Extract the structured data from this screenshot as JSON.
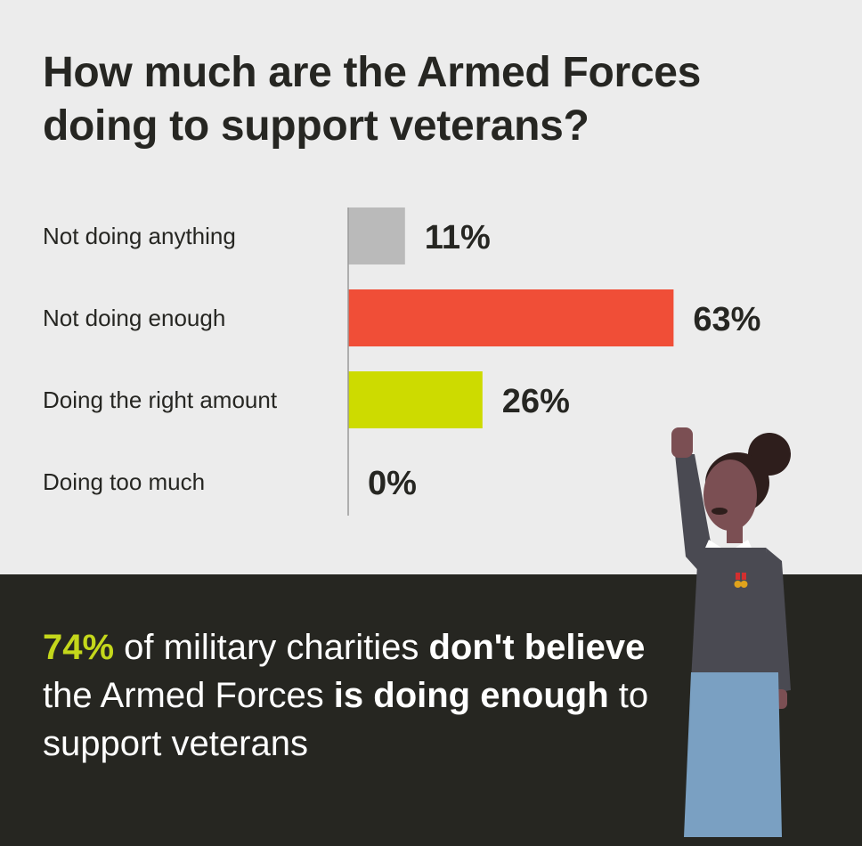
{
  "title": {
    "line1": "How much are the Armed Forces",
    "line2": "doing to support veterans?"
  },
  "chart_data": {
    "type": "bar",
    "orientation": "horizontal",
    "title": "How much are the Armed Forces doing to support veterans?",
    "categories": [
      "Not doing anything",
      "Not doing enough",
      "Doing the right amount",
      "Doing too much"
    ],
    "values": [
      11,
      63,
      26,
      0
    ],
    "value_labels": [
      "11%",
      "63%",
      "26%",
      "0%"
    ],
    "colors": [
      "#bababa",
      "#f04e37",
      "#cddb00",
      "#cddb00"
    ],
    "xlim": [
      0,
      100
    ],
    "unit": "%",
    "grid": false,
    "legend": "none"
  },
  "callout": {
    "pct": "74%",
    "t1": " of military charities ",
    "b1": "don't believe",
    "t2": " the Armed Forces ",
    "b2": "is doing enough",
    "t3": " to support veterans"
  },
  "colors": {
    "background": "#ececec",
    "panel": "#262621",
    "text_dark": "#262622",
    "highlight": "#c4d71b"
  },
  "illustration": "woman-raising-fist-illustration"
}
